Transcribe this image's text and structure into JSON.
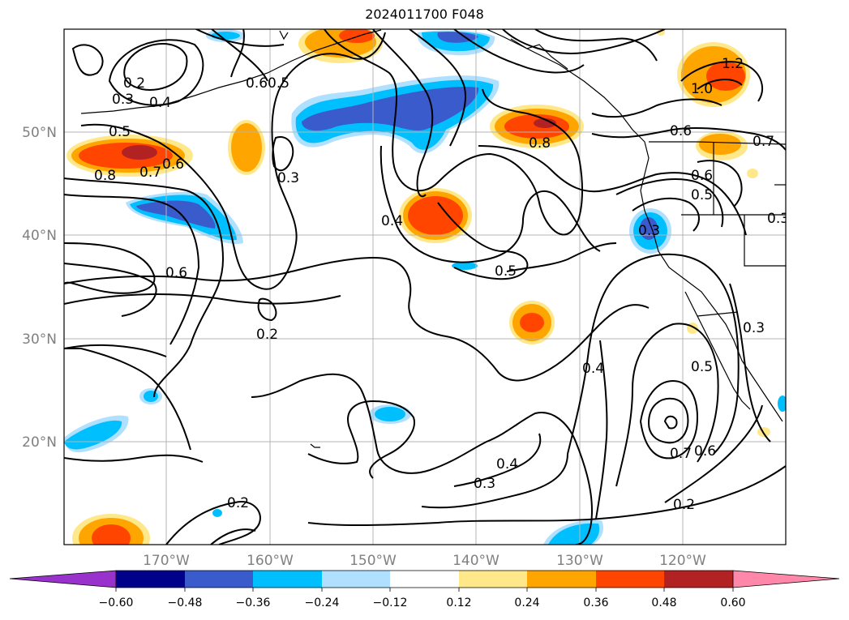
{
  "title": "2024011700 F048",
  "map": {
    "lat_labels": [
      "50°N",
      "40°N",
      "30°N",
      "20°N"
    ],
    "lon_labels": [
      "170°W",
      "160°W",
      "150°W",
      "140°W",
      "130°W",
      "120°W"
    ],
    "contour_labels": [
      "0.2",
      "0.3",
      "0.4",
      "0.5",
      "0.6",
      "0.5",
      "0.6",
      "0.7",
      "0.8",
      "0.3",
      "0.4",
      "0.5",
      "0.8",
      "0.6",
      "0.6",
      "0.5",
      "0.7",
      "0.3",
      "0.3",
      "0.6",
      "0.2",
      "0.2",
      "0.4",
      "0.3",
      "0.4",
      "0.5",
      "0.7",
      "0.6",
      "0.2",
      "0.3",
      "1.2",
      "1.0"
    ]
  },
  "colorbar": {
    "ticks": [
      "−0.60",
      "−0.48",
      "−0.36",
      "−0.24",
      "−0.12",
      "0.12",
      "0.24",
      "0.36",
      "0.48",
      "0.60"
    ],
    "colors": [
      "#9932cc",
      "#00008b",
      "#3a5bcc",
      "#00bfff",
      "#b0e0ff",
      "#ffffff",
      "#ffe88a",
      "#ffa500",
      "#ff4500",
      "#b22222",
      "#ff88aa"
    ]
  }
}
